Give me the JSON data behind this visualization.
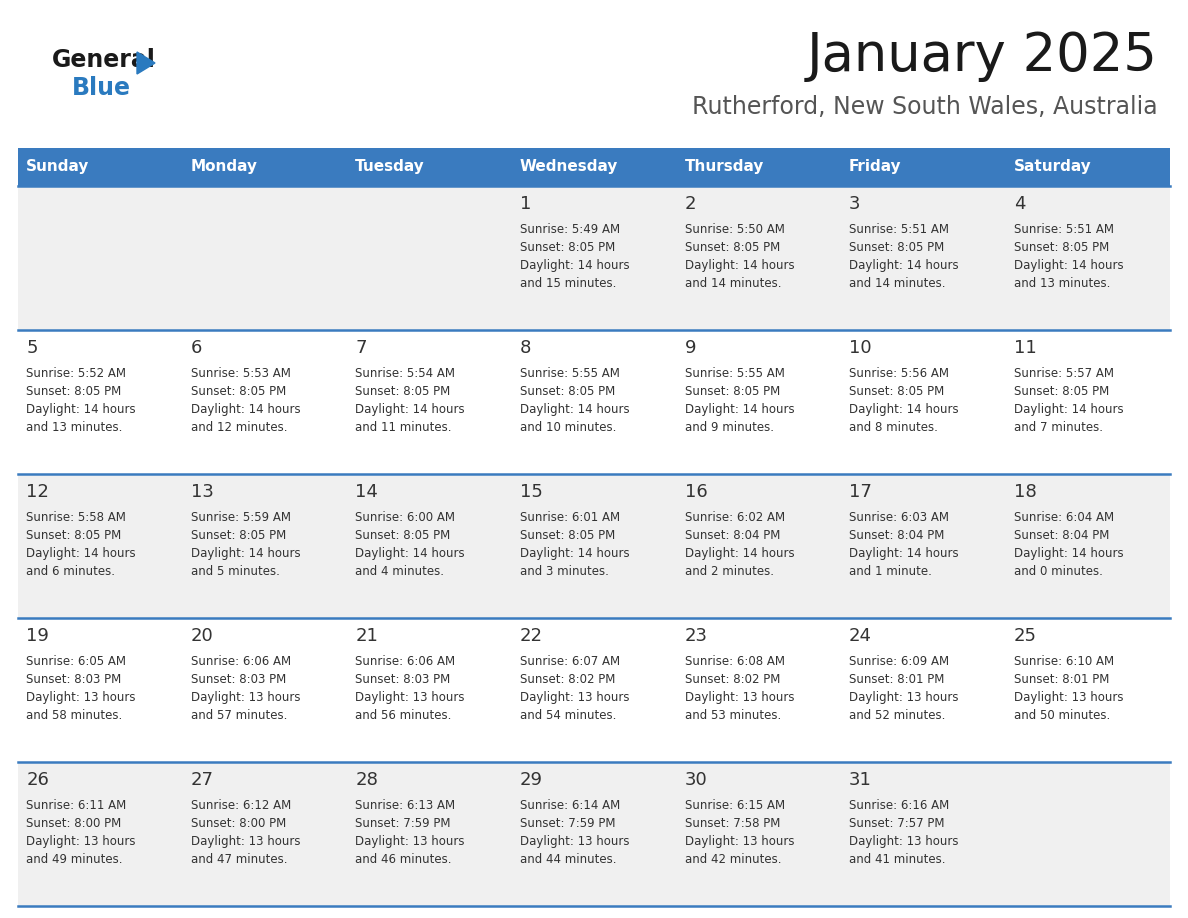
{
  "title": "January 2025",
  "subtitle": "Rutherford, New South Wales, Australia",
  "header_bg": "#3a7bbf",
  "header_text": "#ffffff",
  "row_bg_odd": "#f0f0f0",
  "row_bg_even": "#ffffff",
  "cell_text": "#333333",
  "day_number_color": "#333333",
  "border_color": "#3a7bbf",
  "days_of_week": [
    "Sunday",
    "Monday",
    "Tuesday",
    "Wednesday",
    "Thursday",
    "Friday",
    "Saturday"
  ],
  "calendar": [
    [
      {
        "day": "",
        "info": ""
      },
      {
        "day": "",
        "info": ""
      },
      {
        "day": "",
        "info": ""
      },
      {
        "day": "1",
        "info": "Sunrise: 5:49 AM\nSunset: 8:05 PM\nDaylight: 14 hours\nand 15 minutes."
      },
      {
        "day": "2",
        "info": "Sunrise: 5:50 AM\nSunset: 8:05 PM\nDaylight: 14 hours\nand 14 minutes."
      },
      {
        "day": "3",
        "info": "Sunrise: 5:51 AM\nSunset: 8:05 PM\nDaylight: 14 hours\nand 14 minutes."
      },
      {
        "day": "4",
        "info": "Sunrise: 5:51 AM\nSunset: 8:05 PM\nDaylight: 14 hours\nand 13 minutes."
      }
    ],
    [
      {
        "day": "5",
        "info": "Sunrise: 5:52 AM\nSunset: 8:05 PM\nDaylight: 14 hours\nand 13 minutes."
      },
      {
        "day": "6",
        "info": "Sunrise: 5:53 AM\nSunset: 8:05 PM\nDaylight: 14 hours\nand 12 minutes."
      },
      {
        "day": "7",
        "info": "Sunrise: 5:54 AM\nSunset: 8:05 PM\nDaylight: 14 hours\nand 11 minutes."
      },
      {
        "day": "8",
        "info": "Sunrise: 5:55 AM\nSunset: 8:05 PM\nDaylight: 14 hours\nand 10 minutes."
      },
      {
        "day": "9",
        "info": "Sunrise: 5:55 AM\nSunset: 8:05 PM\nDaylight: 14 hours\nand 9 minutes."
      },
      {
        "day": "10",
        "info": "Sunrise: 5:56 AM\nSunset: 8:05 PM\nDaylight: 14 hours\nand 8 minutes."
      },
      {
        "day": "11",
        "info": "Sunrise: 5:57 AM\nSunset: 8:05 PM\nDaylight: 14 hours\nand 7 minutes."
      }
    ],
    [
      {
        "day": "12",
        "info": "Sunrise: 5:58 AM\nSunset: 8:05 PM\nDaylight: 14 hours\nand 6 minutes."
      },
      {
        "day": "13",
        "info": "Sunrise: 5:59 AM\nSunset: 8:05 PM\nDaylight: 14 hours\nand 5 minutes."
      },
      {
        "day": "14",
        "info": "Sunrise: 6:00 AM\nSunset: 8:05 PM\nDaylight: 14 hours\nand 4 minutes."
      },
      {
        "day": "15",
        "info": "Sunrise: 6:01 AM\nSunset: 8:05 PM\nDaylight: 14 hours\nand 3 minutes."
      },
      {
        "day": "16",
        "info": "Sunrise: 6:02 AM\nSunset: 8:04 PM\nDaylight: 14 hours\nand 2 minutes."
      },
      {
        "day": "17",
        "info": "Sunrise: 6:03 AM\nSunset: 8:04 PM\nDaylight: 14 hours\nand 1 minute."
      },
      {
        "day": "18",
        "info": "Sunrise: 6:04 AM\nSunset: 8:04 PM\nDaylight: 14 hours\nand 0 minutes."
      }
    ],
    [
      {
        "day": "19",
        "info": "Sunrise: 6:05 AM\nSunset: 8:03 PM\nDaylight: 13 hours\nand 58 minutes."
      },
      {
        "day": "20",
        "info": "Sunrise: 6:06 AM\nSunset: 8:03 PM\nDaylight: 13 hours\nand 57 minutes."
      },
      {
        "day": "21",
        "info": "Sunrise: 6:06 AM\nSunset: 8:03 PM\nDaylight: 13 hours\nand 56 minutes."
      },
      {
        "day": "22",
        "info": "Sunrise: 6:07 AM\nSunset: 8:02 PM\nDaylight: 13 hours\nand 54 minutes."
      },
      {
        "day": "23",
        "info": "Sunrise: 6:08 AM\nSunset: 8:02 PM\nDaylight: 13 hours\nand 53 minutes."
      },
      {
        "day": "24",
        "info": "Sunrise: 6:09 AM\nSunset: 8:01 PM\nDaylight: 13 hours\nand 52 minutes."
      },
      {
        "day": "25",
        "info": "Sunrise: 6:10 AM\nSunset: 8:01 PM\nDaylight: 13 hours\nand 50 minutes."
      }
    ],
    [
      {
        "day": "26",
        "info": "Sunrise: 6:11 AM\nSunset: 8:00 PM\nDaylight: 13 hours\nand 49 minutes."
      },
      {
        "day": "27",
        "info": "Sunrise: 6:12 AM\nSunset: 8:00 PM\nDaylight: 13 hours\nand 47 minutes."
      },
      {
        "day": "28",
        "info": "Sunrise: 6:13 AM\nSunset: 7:59 PM\nDaylight: 13 hours\nand 46 minutes."
      },
      {
        "day": "29",
        "info": "Sunrise: 6:14 AM\nSunset: 7:59 PM\nDaylight: 13 hours\nand 44 minutes."
      },
      {
        "day": "30",
        "info": "Sunrise: 6:15 AM\nSunset: 7:58 PM\nDaylight: 13 hours\nand 42 minutes."
      },
      {
        "day": "31",
        "info": "Sunrise: 6:16 AM\nSunset: 7:57 PM\nDaylight: 13 hours\nand 41 minutes."
      },
      {
        "day": "",
        "info": ""
      }
    ]
  ],
  "logo_general_color": "#1a1a1a",
  "logo_blue_color": "#2a7abf",
  "logo_triangle_color": "#2a7abf",
  "title_fontsize": 38,
  "subtitle_fontsize": 17,
  "header_fontsize": 11,
  "day_fontsize": 13,
  "info_fontsize": 8.5
}
